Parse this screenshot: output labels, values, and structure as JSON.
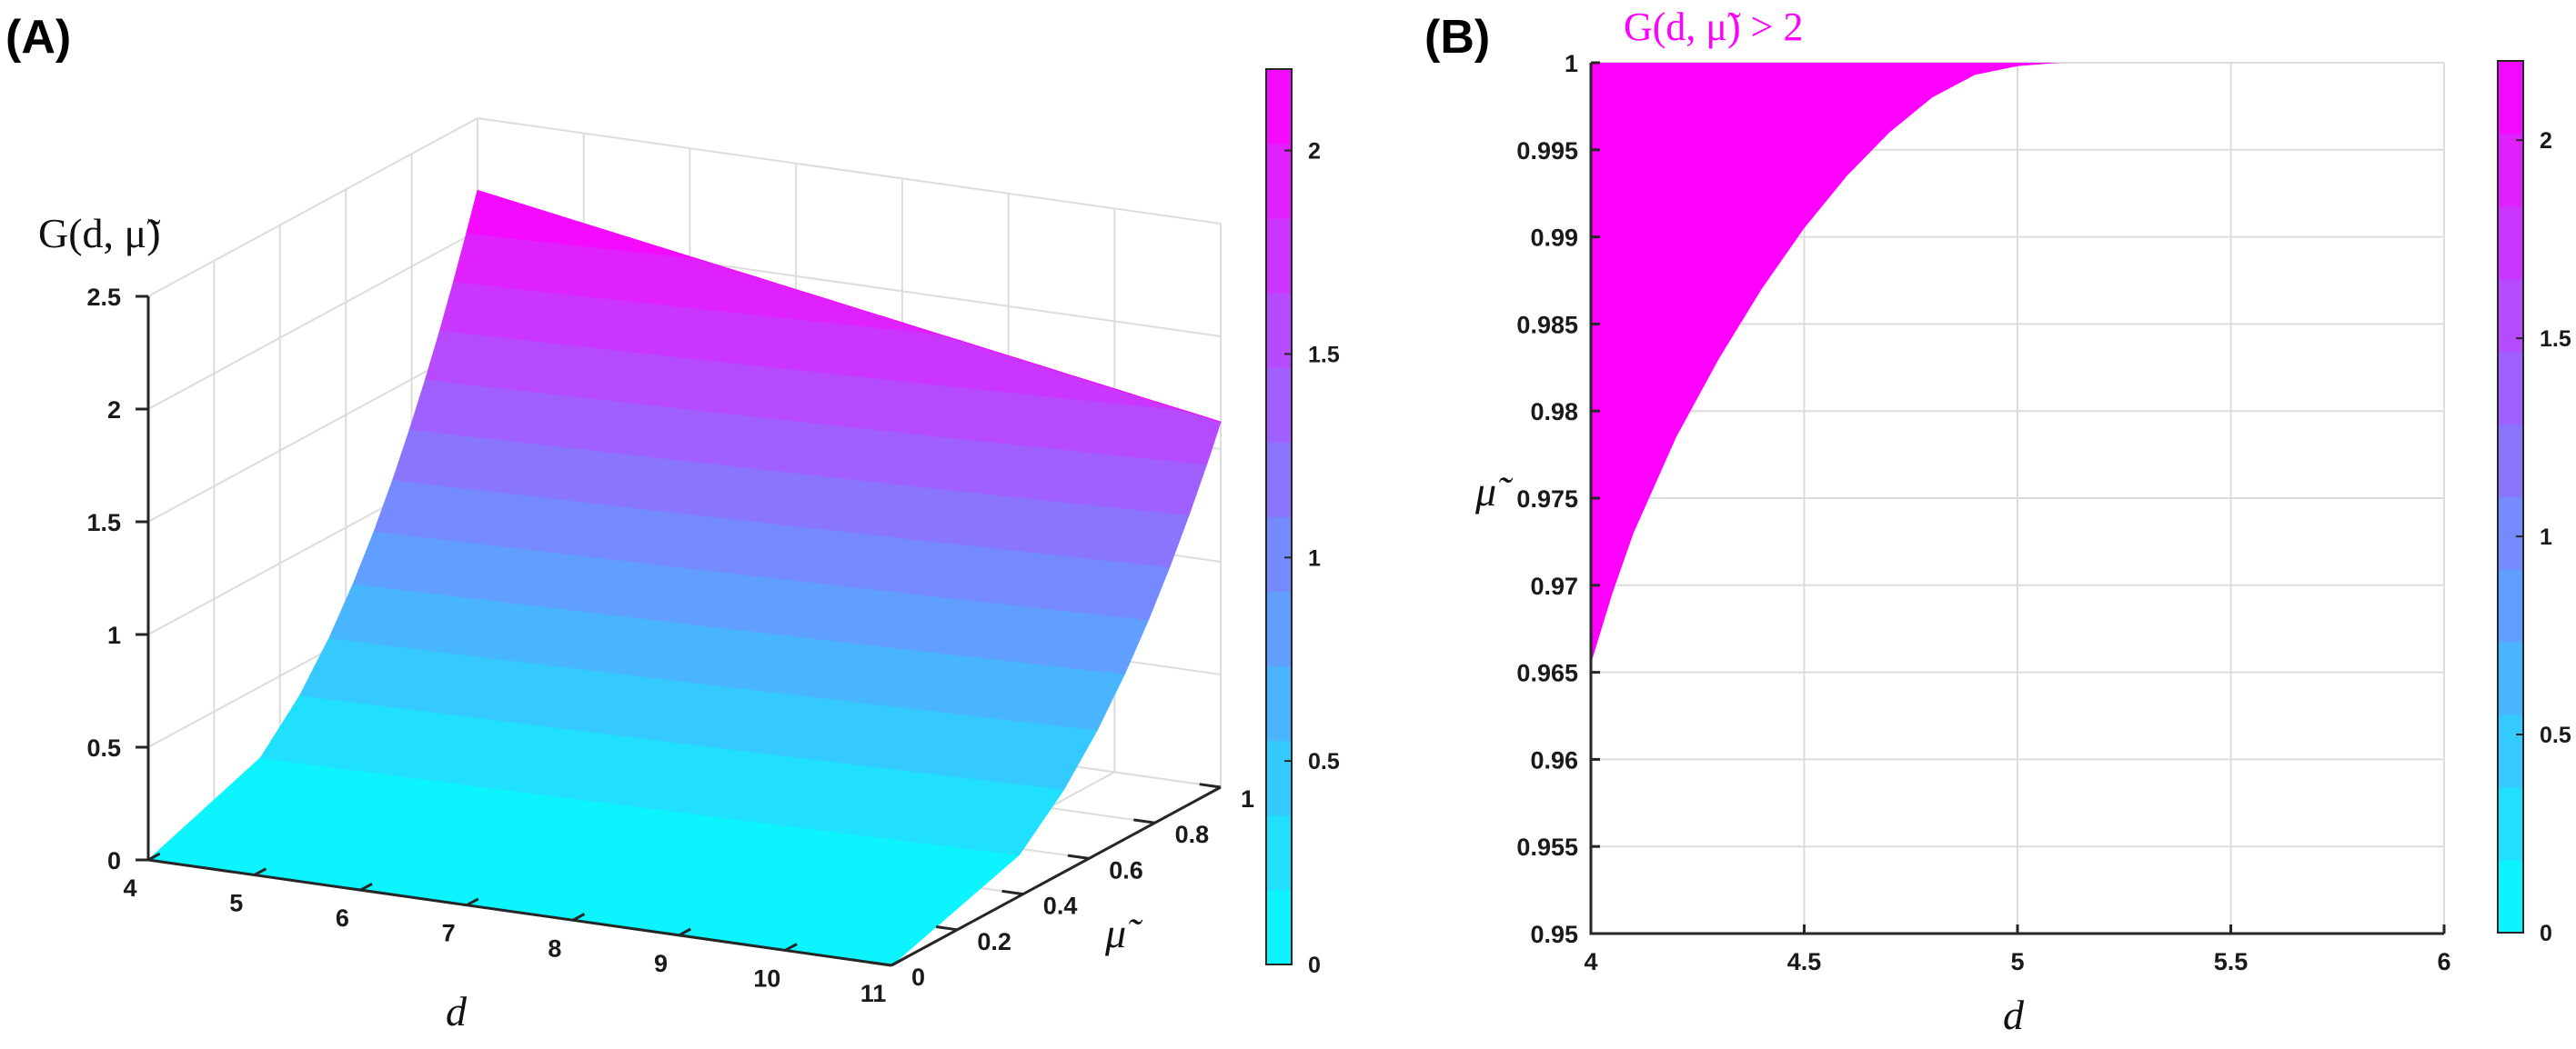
{
  "figure": {
    "panel_a_label": "(A)",
    "panel_b_label": "(B)"
  },
  "colors": {
    "colormap_low": "#00ffff",
    "colormap_high": "#ff00ff",
    "axis": "#262626",
    "grid": "#dcdcdc",
    "region_fill": "#ff00ff"
  },
  "chart_data": [
    {
      "type": "surface",
      "panel": "A",
      "title": "",
      "zlabel": "G(d, μ̃)",
      "xlabel": "d",
      "ylabel": "μ̃",
      "xlim": [
        4,
        11
      ],
      "ylim": [
        0,
        1
      ],
      "zlim": [
        0,
        2.5
      ],
      "x_ticks": [
        4,
        5,
        6,
        7,
        8,
        9,
        10,
        11
      ],
      "y_ticks": [
        0,
        0.2,
        0.4,
        0.6,
        0.8,
        1
      ],
      "z_ticks": [
        0,
        0.5,
        1,
        1.5,
        2,
        2.5
      ],
      "surface_samples": {
        "mu": [
          0,
          1
        ],
        "G_at_d4": [
          0,
          2.18
        ],
        "G_at_d11": [
          0,
          1.62
        ]
      },
      "colorbar": {
        "range": [
          0,
          2.2
        ],
        "ticks": [
          0,
          0.5,
          1,
          1.5,
          2
        ],
        "levels": 12
      },
      "grid": true
    },
    {
      "type": "region",
      "panel": "B",
      "title": "G(d, μ̃) > 2",
      "xlabel": "d",
      "ylabel": "μ̃",
      "xlim": [
        4,
        6
      ],
      "ylim": [
        0.95,
        1
      ],
      "x_ticks": [
        4,
        4.5,
        5,
        5.5,
        6
      ],
      "y_ticks": [
        0.95,
        0.955,
        0.96,
        0.965,
        0.97,
        0.975,
        0.98,
        0.985,
        0.99,
        0.995,
        1
      ],
      "boundary": {
        "d": [
          4.0,
          4.05,
          4.1,
          4.2,
          4.3,
          4.4,
          4.5,
          4.6,
          4.7,
          4.8,
          4.9,
          5.0,
          5.1
        ],
        "mu": [
          0.9655,
          0.9695,
          0.973,
          0.9785,
          0.983,
          0.987,
          0.9905,
          0.9935,
          0.996,
          0.998,
          0.9993,
          0.9998,
          1.0
        ]
      },
      "colorbar": {
        "range": [
          0,
          2.2
        ],
        "ticks": [
          0,
          0.5,
          1,
          1.5,
          2
        ],
        "levels": 12
      },
      "grid": true
    }
  ]
}
